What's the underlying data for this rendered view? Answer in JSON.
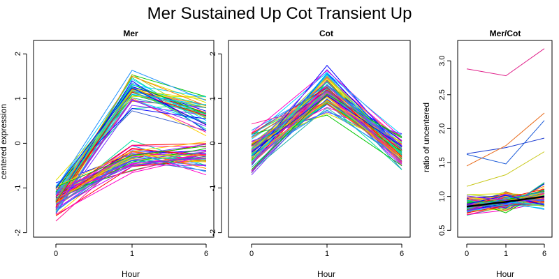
{
  "chart_data": {
    "title": "Mer Sustained Up Cot Transient Up",
    "panels": [
      {
        "id": "mer",
        "type": "line",
        "title": "Mer",
        "xlabel": "Hour",
        "ylabel": "centered expression",
        "x_tick_labels": [
          "0",
          "1",
          "6"
        ],
        "y_ticks": [
          -2,
          -1,
          0,
          1,
          2
        ],
        "ylim": [
          -2.1,
          2.3
        ],
        "n_series": 90
      },
      {
        "id": "cot",
        "type": "line",
        "title": "Cot",
        "xlabel": "Hour",
        "ylabel": "",
        "x_tick_labels": [
          "0",
          "1",
          "6"
        ],
        "y_ticks": [
          -2,
          -1,
          0,
          1,
          2
        ],
        "ylim": [
          -2.1,
          2.3
        ],
        "n_series": 90
      },
      {
        "id": "ratio",
        "type": "line",
        "title": "Mer/Cot",
        "xlabel": "Hour",
        "ylabel": "ratio of uncentered",
        "x_tick_labels": [
          "0",
          "1",
          "6"
        ],
        "y_ticks": [
          0.5,
          1.0,
          1.5,
          2.0,
          2.5,
          3.0
        ],
        "y_tick_labels": [
          "0.5",
          "1.0",
          "1.5",
          "2.0",
          "2.5",
          "3.0"
        ],
        "ylim": [
          0.4,
          3.3
        ],
        "n_series": 90,
        "highlight_series": {
          "color": "#000000",
          "values": [
            0.85,
            0.92,
            1.0
          ]
        },
        "outlier_series": [
          {
            "color": "#e0208a",
            "values": [
              2.88,
              2.78,
              3.18
            ]
          },
          {
            "color": "#1a3ad0",
            "values": [
              1.63,
              1.72,
              1.86
            ]
          },
          {
            "color": "#e86a1a",
            "values": [
              1.45,
              1.75,
              2.23
            ]
          },
          {
            "color": "#1a5ad8",
            "values": [
              1.62,
              1.48,
              2.12
            ]
          },
          {
            "color": "#c8c81a",
            "values": [
              1.15,
              1.32,
              1.66
            ]
          }
        ]
      }
    ],
    "palette": [
      "#ff0000",
      "#ff7f00",
      "#ffd000",
      "#9acd32",
      "#00c800",
      "#00e0a0",
      "#00d0ff",
      "#1e90ff",
      "#0000ff",
      "#7b2cff",
      "#c800ff",
      "#ff00c8",
      "#ff1493",
      "#20b2aa",
      "#e0e000",
      "#3a5fcd"
    ]
  }
}
